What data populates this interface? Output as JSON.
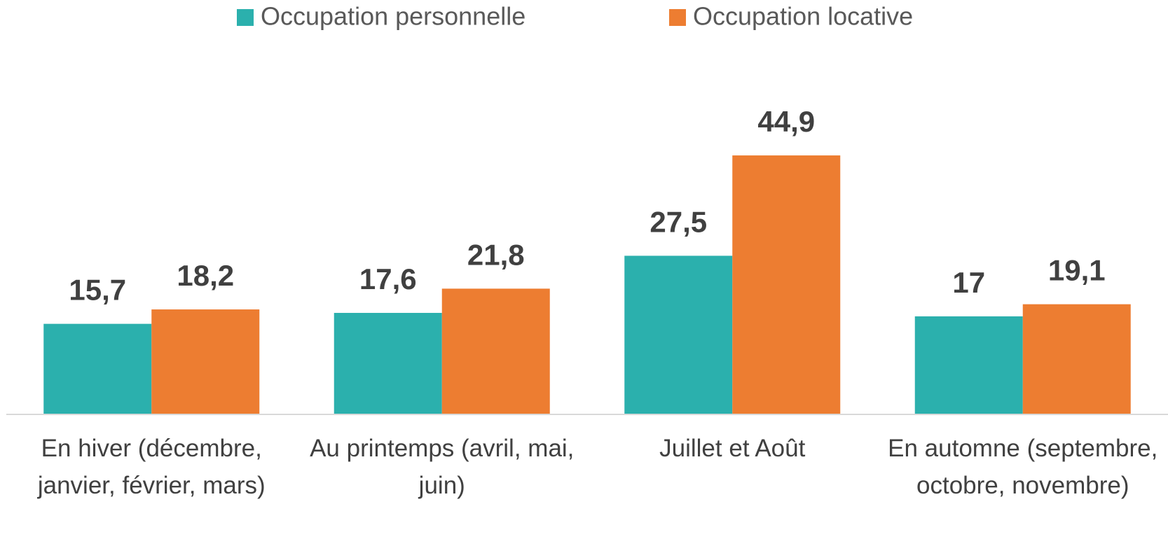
{
  "chart_data": {
    "type": "bar",
    "categories": [
      "En hiver (décembre, janvier, février, mars)",
      "Au printemps (avril, mai, juin)",
      "Juillet et Août",
      "En automne (septembre, octobre, novembre)"
    ],
    "series": [
      {
        "name": "Occupation personnelle",
        "color": "#2bb0ad",
        "values": [
          15.7,
          17.6,
          27.5,
          17
        ],
        "value_labels": [
          "15,7",
          "17,6",
          "27,5",
          "17"
        ]
      },
      {
        "name": "Occupation locative",
        "color": "#ed7d31",
        "values": [
          18.2,
          21.8,
          44.9,
          19.1
        ],
        "value_labels": [
          "18,2",
          "21,8",
          "44,9",
          "19,1"
        ]
      }
    ],
    "ylim": [
      0,
      50
    ],
    "legend": "top"
  }
}
